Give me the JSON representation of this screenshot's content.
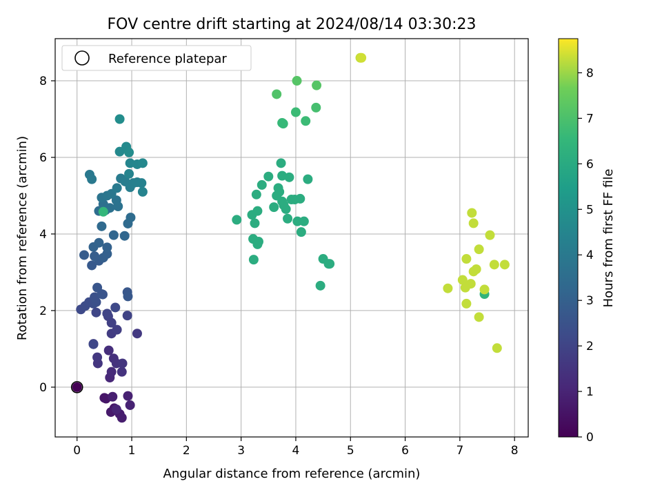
{
  "chart_data": {
    "type": "scatter",
    "title": "FOV centre drift starting at 2024/08/14 03:30:23",
    "xlabel": "Angular distance from reference (arcmin)",
    "ylabel": "Rotation from reference (arcmin)",
    "xlim": [
      -0.4,
      8.25
    ],
    "ylim": [
      -1.3,
      9.1
    ],
    "xticks": [
      "0",
      "1",
      "2",
      "3",
      "4",
      "5",
      "6",
      "7",
      "8"
    ],
    "yticks": [
      "0",
      "2",
      "4",
      "6",
      "8"
    ],
    "grid": true,
    "legend": {
      "placement": "top-left",
      "entries": [
        "Reference platepar"
      ]
    },
    "reference_point": {
      "x": 0,
      "y": 0
    },
    "colorbar": {
      "label": "Hours from first FF file",
      "colormap": "viridis",
      "range": [
        0,
        8.75
      ],
      "ticks": [
        "0",
        "1",
        "2",
        "3",
        "4",
        "5",
        "6",
        "7",
        "8"
      ]
    },
    "points": [
      {
        "x": 0.0,
        "y": 0.0,
        "h": 0.0
      },
      {
        "x": 0.53,
        "y": -0.3,
        "h": 0.55
      },
      {
        "x": 0.5,
        "y": -0.28,
        "h": 0.6
      },
      {
        "x": 0.68,
        "y": -0.55,
        "h": 0.65
      },
      {
        "x": 0.62,
        "y": -0.65,
        "h": 0.7
      },
      {
        "x": 0.78,
        "y": -0.7,
        "h": 0.75
      },
      {
        "x": 0.82,
        "y": -0.8,
        "h": 0.8
      },
      {
        "x": 0.65,
        "y": -0.25,
        "h": 0.85
      },
      {
        "x": 0.93,
        "y": -0.23,
        "h": 0.9
      },
      {
        "x": 0.97,
        "y": -0.47,
        "h": 0.95
      },
      {
        "x": 0.72,
        "y": -0.58,
        "h": 1.0
      },
      {
        "x": 0.6,
        "y": 0.25,
        "h": 1.1
      },
      {
        "x": 0.63,
        "y": 0.4,
        "h": 1.2
      },
      {
        "x": 0.58,
        "y": 0.96,
        "h": 1.3
      },
      {
        "x": 0.67,
        "y": 0.75,
        "h": 1.35
      },
      {
        "x": 0.72,
        "y": 0.62,
        "h": 1.4
      },
      {
        "x": 0.82,
        "y": 0.4,
        "h": 1.45
      },
      {
        "x": 0.83,
        "y": 0.62,
        "h": 1.5
      },
      {
        "x": 0.38,
        "y": 0.62,
        "h": 1.55
      },
      {
        "x": 0.37,
        "y": 0.78,
        "h": 1.6
      },
      {
        "x": 1.1,
        "y": 1.4,
        "h": 1.65
      },
      {
        "x": 0.3,
        "y": 1.13,
        "h": 1.7
      },
      {
        "x": 0.63,
        "y": 1.4,
        "h": 1.75
      },
      {
        "x": 0.73,
        "y": 1.5,
        "h": 1.8
      },
      {
        "x": 0.63,
        "y": 1.68,
        "h": 1.85
      },
      {
        "x": 0.57,
        "y": 1.85,
        "h": 1.9
      },
      {
        "x": 0.92,
        "y": 1.87,
        "h": 1.95
      },
      {
        "x": 0.55,
        "y": 1.92,
        "h": 2.0
      },
      {
        "x": 0.35,
        "y": 1.95,
        "h": 2.05
      },
      {
        "x": 0.3,
        "y": 1.12,
        "h": 2.1
      },
      {
        "x": 0.7,
        "y": 2.08,
        "h": 2.15
      },
      {
        "x": 0.07,
        "y": 2.03,
        "h": 2.2
      },
      {
        "x": 0.15,
        "y": 2.12,
        "h": 2.25
      },
      {
        "x": 0.22,
        "y": 2.22,
        "h": 2.3
      },
      {
        "x": 0.3,
        "y": 2.18,
        "h": 2.35
      },
      {
        "x": 0.35,
        "y": 2.22,
        "h": 2.4
      },
      {
        "x": 0.32,
        "y": 2.35,
        "h": 2.45
      },
      {
        "x": 0.47,
        "y": 2.42,
        "h": 2.5
      },
      {
        "x": 0.45,
        "y": 2.43,
        "h": 2.55
      },
      {
        "x": 0.37,
        "y": 2.6,
        "h": 2.6
      },
      {
        "x": 0.92,
        "y": 2.48,
        "h": 2.65
      },
      {
        "x": 0.93,
        "y": 2.37,
        "h": 2.7
      },
      {
        "x": 0.27,
        "y": 3.18,
        "h": 2.75
      },
      {
        "x": 0.4,
        "y": 3.3,
        "h": 2.8
      },
      {
        "x": 0.13,
        "y": 3.45,
        "h": 2.85
      },
      {
        "x": 0.32,
        "y": 3.42,
        "h": 2.9
      },
      {
        "x": 0.48,
        "y": 3.38,
        "h": 2.95
      },
      {
        "x": 0.55,
        "y": 3.48,
        "h": 3.0
      },
      {
        "x": 0.55,
        "y": 3.65,
        "h": 3.05
      },
      {
        "x": 0.3,
        "y": 3.66,
        "h": 3.1
      },
      {
        "x": 0.4,
        "y": 3.77,
        "h": 3.15
      },
      {
        "x": 0.67,
        "y": 3.97,
        "h": 3.2
      },
      {
        "x": 0.87,
        "y": 3.95,
        "h": 3.25
      },
      {
        "x": 0.45,
        "y": 4.2,
        "h": 3.35
      },
      {
        "x": 0.93,
        "y": 4.27,
        "h": 3.4
      },
      {
        "x": 0.98,
        "y": 4.43,
        "h": 3.45
      },
      {
        "x": 0.4,
        "y": 4.6,
        "h": 3.5
      },
      {
        "x": 0.52,
        "y": 4.62,
        "h": 3.55
      },
      {
        "x": 0.48,
        "y": 4.78,
        "h": 3.6
      },
      {
        "x": 0.6,
        "y": 4.68,
        "h": 3.65
      },
      {
        "x": 0.75,
        "y": 4.72,
        "h": 3.7
      },
      {
        "x": 0.72,
        "y": 4.88,
        "h": 3.75
      },
      {
        "x": 0.45,
        "y": 4.95,
        "h": 3.8
      },
      {
        "x": 0.55,
        "y": 5.0,
        "h": 3.85
      },
      {
        "x": 0.63,
        "y": 5.05,
        "h": 3.9
      },
      {
        "x": 0.23,
        "y": 5.55,
        "h": 3.95
      },
      {
        "x": 0.27,
        "y": 5.43,
        "h": 4.0
      },
      {
        "x": 0.73,
        "y": 5.2,
        "h": 4.05
      },
      {
        "x": 0.8,
        "y": 5.45,
        "h": 4.1
      },
      {
        "x": 0.88,
        "y": 5.37,
        "h": 4.15
      },
      {
        "x": 0.97,
        "y": 5.22,
        "h": 4.2
      },
      {
        "x": 1.03,
        "y": 5.33,
        "h": 4.25
      },
      {
        "x": 1.1,
        "y": 5.35,
        "h": 4.3
      },
      {
        "x": 1.18,
        "y": 5.33,
        "h": 4.35
      },
      {
        "x": 1.2,
        "y": 5.1,
        "h": 4.4
      },
      {
        "x": 0.95,
        "y": 5.57,
        "h": 4.45
      },
      {
        "x": 0.97,
        "y": 5.85,
        "h": 4.5
      },
      {
        "x": 1.1,
        "y": 5.82,
        "h": 4.55
      },
      {
        "x": 1.2,
        "y": 5.85,
        "h": 4.6
      },
      {
        "x": 0.78,
        "y": 6.15,
        "h": 4.65
      },
      {
        "x": 0.9,
        "y": 6.28,
        "h": 4.7
      },
      {
        "x": 0.95,
        "y": 6.13,
        "h": 4.75
      },
      {
        "x": 0.78,
        "y": 7.0,
        "h": 4.8
      },
      {
        "x": 0.48,
        "y": 4.58,
        "h": 6.5
      },
      {
        "x": 2.92,
        "y": 4.37,
        "h": 6.1
      },
      {
        "x": 3.2,
        "y": 4.5,
        "h": 6.1
      },
      {
        "x": 3.25,
        "y": 4.28,
        "h": 6.1
      },
      {
        "x": 3.3,
        "y": 4.6,
        "h": 6.1
      },
      {
        "x": 3.28,
        "y": 5.03,
        "h": 6.1
      },
      {
        "x": 3.38,
        "y": 5.28,
        "h": 6.1
      },
      {
        "x": 3.5,
        "y": 5.5,
        "h": 6.1
      },
      {
        "x": 3.22,
        "y": 3.87,
        "h": 6.1
      },
      {
        "x": 3.32,
        "y": 3.8,
        "h": 6.1
      },
      {
        "x": 3.3,
        "y": 3.73,
        "h": 6.1
      },
      {
        "x": 3.23,
        "y": 3.33,
        "h": 6.1
      },
      {
        "x": 3.6,
        "y": 4.7,
        "h": 6.1
      },
      {
        "x": 3.65,
        "y": 5.0,
        "h": 6.1
      },
      {
        "x": 3.68,
        "y": 5.2,
        "h": 6.1
      },
      {
        "x": 3.7,
        "y": 5.1,
        "h": 6.1
      },
      {
        "x": 3.75,
        "y": 4.85,
        "h": 6.1
      },
      {
        "x": 3.78,
        "y": 4.75,
        "h": 6.1
      },
      {
        "x": 3.82,
        "y": 4.65,
        "h": 6.1
      },
      {
        "x": 3.85,
        "y": 4.4,
        "h": 6.1
      },
      {
        "x": 3.92,
        "y": 4.9,
        "h": 6.1
      },
      {
        "x": 3.98,
        "y": 4.9,
        "h": 6.1
      },
      {
        "x": 4.08,
        "y": 4.92,
        "h": 6.1
      },
      {
        "x": 4.03,
        "y": 4.33,
        "h": 6.1
      },
      {
        "x": 4.15,
        "y": 4.33,
        "h": 6.1
      },
      {
        "x": 4.1,
        "y": 4.05,
        "h": 6.1
      },
      {
        "x": 3.73,
        "y": 5.85,
        "h": 6.1
      },
      {
        "x": 3.75,
        "y": 5.52,
        "h": 6.1
      },
      {
        "x": 3.88,
        "y": 5.48,
        "h": 6.1
      },
      {
        "x": 4.22,
        "y": 5.43,
        "h": 6.1
      },
      {
        "x": 4.5,
        "y": 3.35,
        "h": 6.1
      },
      {
        "x": 4.6,
        "y": 3.22,
        "h": 6.1
      },
      {
        "x": 4.62,
        "y": 3.22,
        "h": 6.1
      },
      {
        "x": 4.45,
        "y": 2.65,
        "h": 6.1
      },
      {
        "x": 3.75,
        "y": 6.9,
        "h": 6.6
      },
      {
        "x": 3.77,
        "y": 6.88,
        "h": 6.6
      },
      {
        "x": 4.0,
        "y": 7.18,
        "h": 6.7
      },
      {
        "x": 4.18,
        "y": 6.95,
        "h": 6.7
      },
      {
        "x": 4.37,
        "y": 7.3,
        "h": 6.9
      },
      {
        "x": 3.65,
        "y": 7.65,
        "h": 7.1
      },
      {
        "x": 4.02,
        "y": 8.0,
        "h": 7.2
      },
      {
        "x": 4.38,
        "y": 7.88,
        "h": 7.2
      },
      {
        "x": 5.18,
        "y": 8.6,
        "h": 8.3
      },
      {
        "x": 5.2,
        "y": 8.6,
        "h": 8.4
      },
      {
        "x": 7.45,
        "y": 2.43,
        "h": 6.4
      },
      {
        "x": 6.78,
        "y": 2.58,
        "h": 8.3
      },
      {
        "x": 7.05,
        "y": 2.8,
        "h": 8.3
      },
      {
        "x": 7.1,
        "y": 2.6,
        "h": 8.3
      },
      {
        "x": 7.12,
        "y": 2.18,
        "h": 8.3
      },
      {
        "x": 7.2,
        "y": 2.7,
        "h": 8.3
      },
      {
        "x": 7.12,
        "y": 3.35,
        "h": 8.3
      },
      {
        "x": 7.25,
        "y": 3.02,
        "h": 8.3
      },
      {
        "x": 7.3,
        "y": 3.08,
        "h": 8.3
      },
      {
        "x": 7.35,
        "y": 3.6,
        "h": 8.3
      },
      {
        "x": 7.25,
        "y": 4.28,
        "h": 8.3
      },
      {
        "x": 7.22,
        "y": 4.55,
        "h": 8.3
      },
      {
        "x": 7.55,
        "y": 3.97,
        "h": 8.3
      },
      {
        "x": 7.63,
        "y": 3.2,
        "h": 8.3
      },
      {
        "x": 7.82,
        "y": 3.2,
        "h": 8.3
      },
      {
        "x": 7.45,
        "y": 2.55,
        "h": 8.3
      },
      {
        "x": 7.35,
        "y": 1.83,
        "h": 8.3
      },
      {
        "x": 7.68,
        "y": 1.02,
        "h": 8.3
      }
    ]
  }
}
